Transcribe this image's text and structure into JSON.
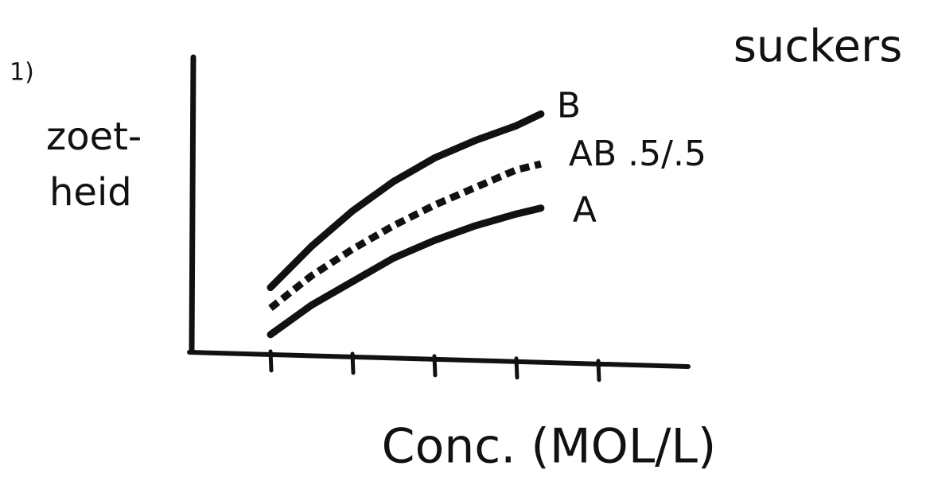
{
  "chart_data": {
    "type": "line",
    "number": "1)",
    "title": "suckers",
    "y_label": [
      "zoet-",
      "heid"
    ],
    "x_label": "Conc. (MOL/L)",
    "x": [
      1,
      1.5,
      2,
      2.5,
      3,
      3.5,
      4,
      4.3
    ],
    "xlim": [
      0,
      6
    ],
    "xticks": [
      1,
      2,
      3,
      4,
      5
    ],
    "ylim": [
      0,
      10
    ],
    "series": [
      {
        "name": "B",
        "color": "#111111",
        "line_style": "solid",
        "values": [
          2.2,
          3.6,
          4.8,
          5.8,
          6.6,
          7.2,
          7.7,
          8.1
        ]
      },
      {
        "name": "AB .5/.5",
        "color": "#111111",
        "line_style": "dotted",
        "values": [
          1.5,
          2.6,
          3.5,
          4.3,
          5.0,
          5.6,
          6.2,
          6.4
        ]
      },
      {
        "name": "A",
        "color": "#111111",
        "line_style": "solid",
        "values": [
          0.6,
          1.6,
          2.4,
          3.2,
          3.8,
          4.3,
          4.7,
          4.9
        ]
      }
    ]
  }
}
